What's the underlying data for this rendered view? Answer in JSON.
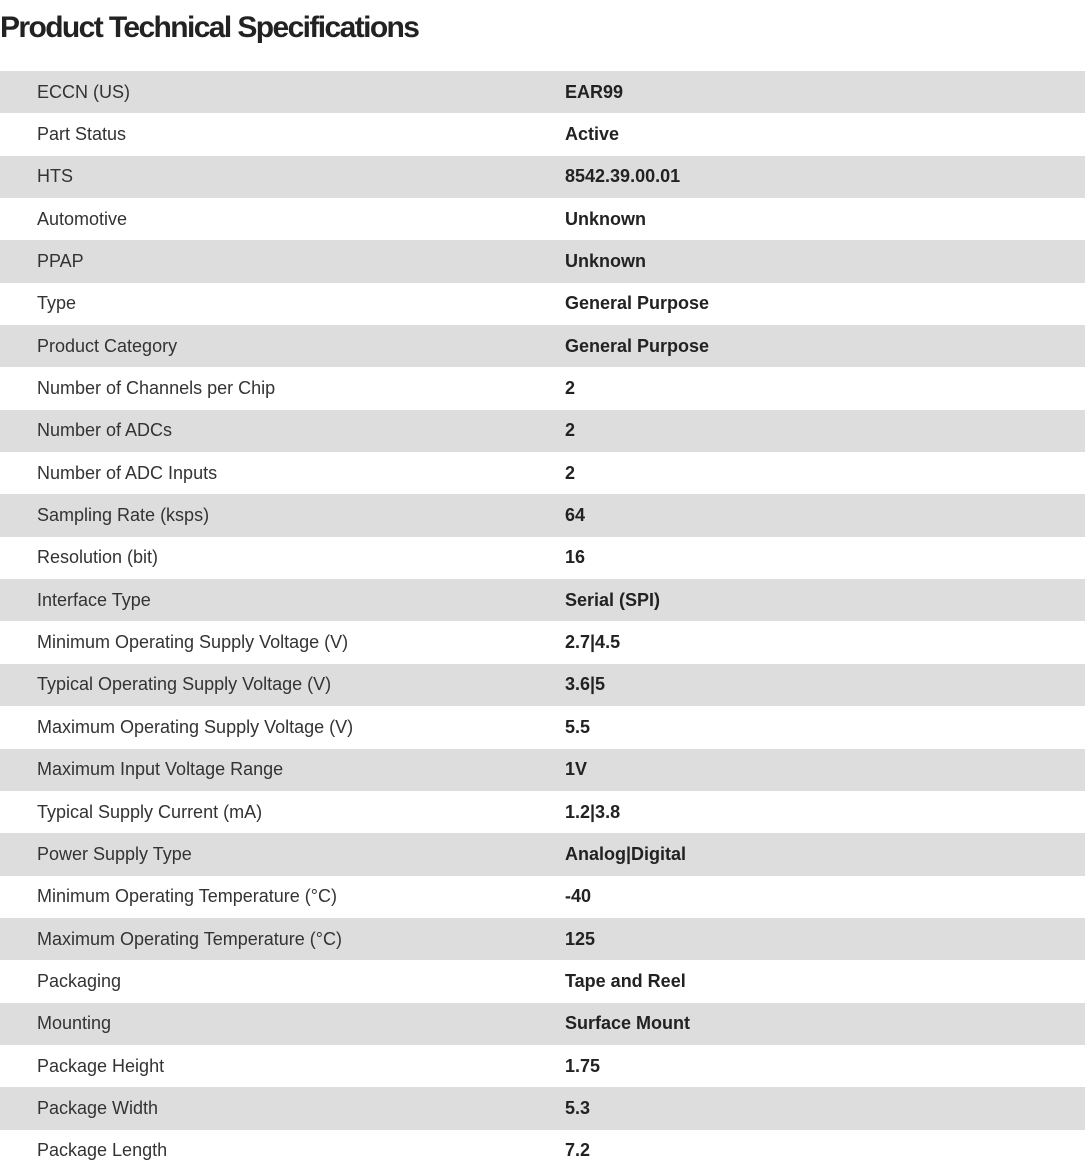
{
  "title": "Product Technical Specifications",
  "specs": [
    {
      "label": "ECCN (US)",
      "value": "EAR99"
    },
    {
      "label": "Part Status",
      "value": "Active"
    },
    {
      "label": "HTS",
      "value": "8542.39.00.01"
    },
    {
      "label": "Automotive",
      "value": "Unknown"
    },
    {
      "label": "PPAP",
      "value": "Unknown"
    },
    {
      "label": "Type",
      "value": "General Purpose"
    },
    {
      "label": "Product Category",
      "value": "General Purpose"
    },
    {
      "label": "Number of Channels per Chip",
      "value": "2"
    },
    {
      "label": "Number of ADCs",
      "value": "2"
    },
    {
      "label": "Number of ADC Inputs",
      "value": "2"
    },
    {
      "label": "Sampling Rate (ksps)",
      "value": "64"
    },
    {
      "label": "Resolution (bit)",
      "value": "16"
    },
    {
      "label": "Interface Type",
      "value": "Serial (SPI)"
    },
    {
      "label": "Minimum Operating Supply Voltage (V)",
      "value": "2.7|4.5"
    },
    {
      "label": "Typical Operating Supply Voltage (V)",
      "value": "3.6|5"
    },
    {
      "label": "Maximum Operating Supply Voltage (V)",
      "value": "5.5"
    },
    {
      "label": "Maximum Input Voltage Range",
      "value": "1V"
    },
    {
      "label": "Typical Supply Current (mA)",
      "value": "1.2|3.8"
    },
    {
      "label": "Power Supply Type",
      "value": "Analog|Digital"
    },
    {
      "label": "Minimum Operating Temperature (°C)",
      "value": "-40"
    },
    {
      "label": "Maximum Operating Temperature (°C)",
      "value": "125"
    },
    {
      "label": "Packaging",
      "value": "Tape and Reel"
    },
    {
      "label": "Mounting",
      "value": "Surface Mount"
    },
    {
      "label": "Package Height",
      "value": "1.75"
    },
    {
      "label": "Package Width",
      "value": "5.3"
    },
    {
      "label": "Package Length",
      "value": "7.2"
    }
  ]
}
